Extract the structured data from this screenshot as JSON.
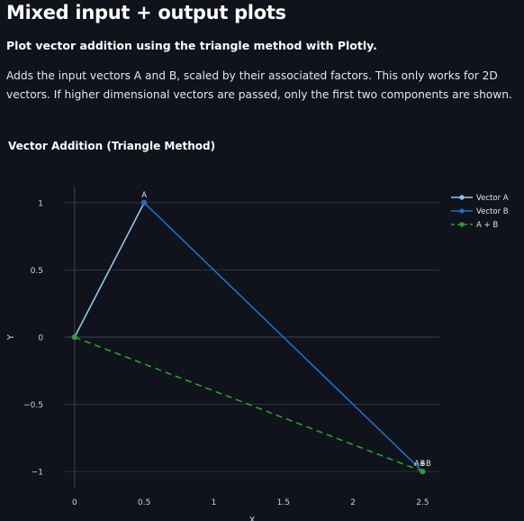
{
  "page": {
    "title": "Mixed input + output plots",
    "subtitle": "Plot vector addition using the triangle method with Plotly.",
    "description": "Adds the input vectors A and B, scaled by their associated factors. This only works for 2D vectors. If higher dimensional vectors are passed, only the first two components are shown."
  },
  "chart_data": {
    "type": "line",
    "title": "Vector Addition (Triangle Method)",
    "xlabel": "X",
    "ylabel": "Y",
    "xlim": [
      -0.07,
      2.62
    ],
    "ylim": [
      -1.12,
      1.12
    ],
    "xticks": [
      0,
      0.5,
      1,
      1.5,
      2,
      2.5
    ],
    "xtick_labels": [
      "0",
      "0.5",
      "1",
      "1.5",
      "2",
      "2.5"
    ],
    "yticks": [
      1,
      0.5,
      0,
      -0.5,
      -1
    ],
    "ytick_labels": [
      "1",
      "0.5",
      "0",
      "−0.5",
      "−1"
    ],
    "grid": true,
    "legend_position": "top-right",
    "series": [
      {
        "name": "Vector A",
        "x": [
          0,
          0.5
        ],
        "y": [
          0,
          1
        ],
        "color": "#8fc5f0",
        "dash": "solid",
        "point_labels": [
          "",
          "A"
        ]
      },
      {
        "name": "Vector B",
        "x": [
          0.5,
          2.5
        ],
        "y": [
          1,
          -1
        ],
        "color": "#1f6fc4",
        "dash": "solid",
        "point_labels": [
          "",
          "B"
        ]
      },
      {
        "name": "A + B",
        "x": [
          0,
          2.5
        ],
        "y": [
          0,
          -1
        ],
        "color": "#2ca02c",
        "dash": "dashed",
        "point_labels": [
          "",
          "A+B"
        ]
      }
    ]
  },
  "colors": {
    "background": "#10131b",
    "grid": "#2d323d",
    "zeroline": "#3d434f",
    "text": "#fafafa"
  }
}
